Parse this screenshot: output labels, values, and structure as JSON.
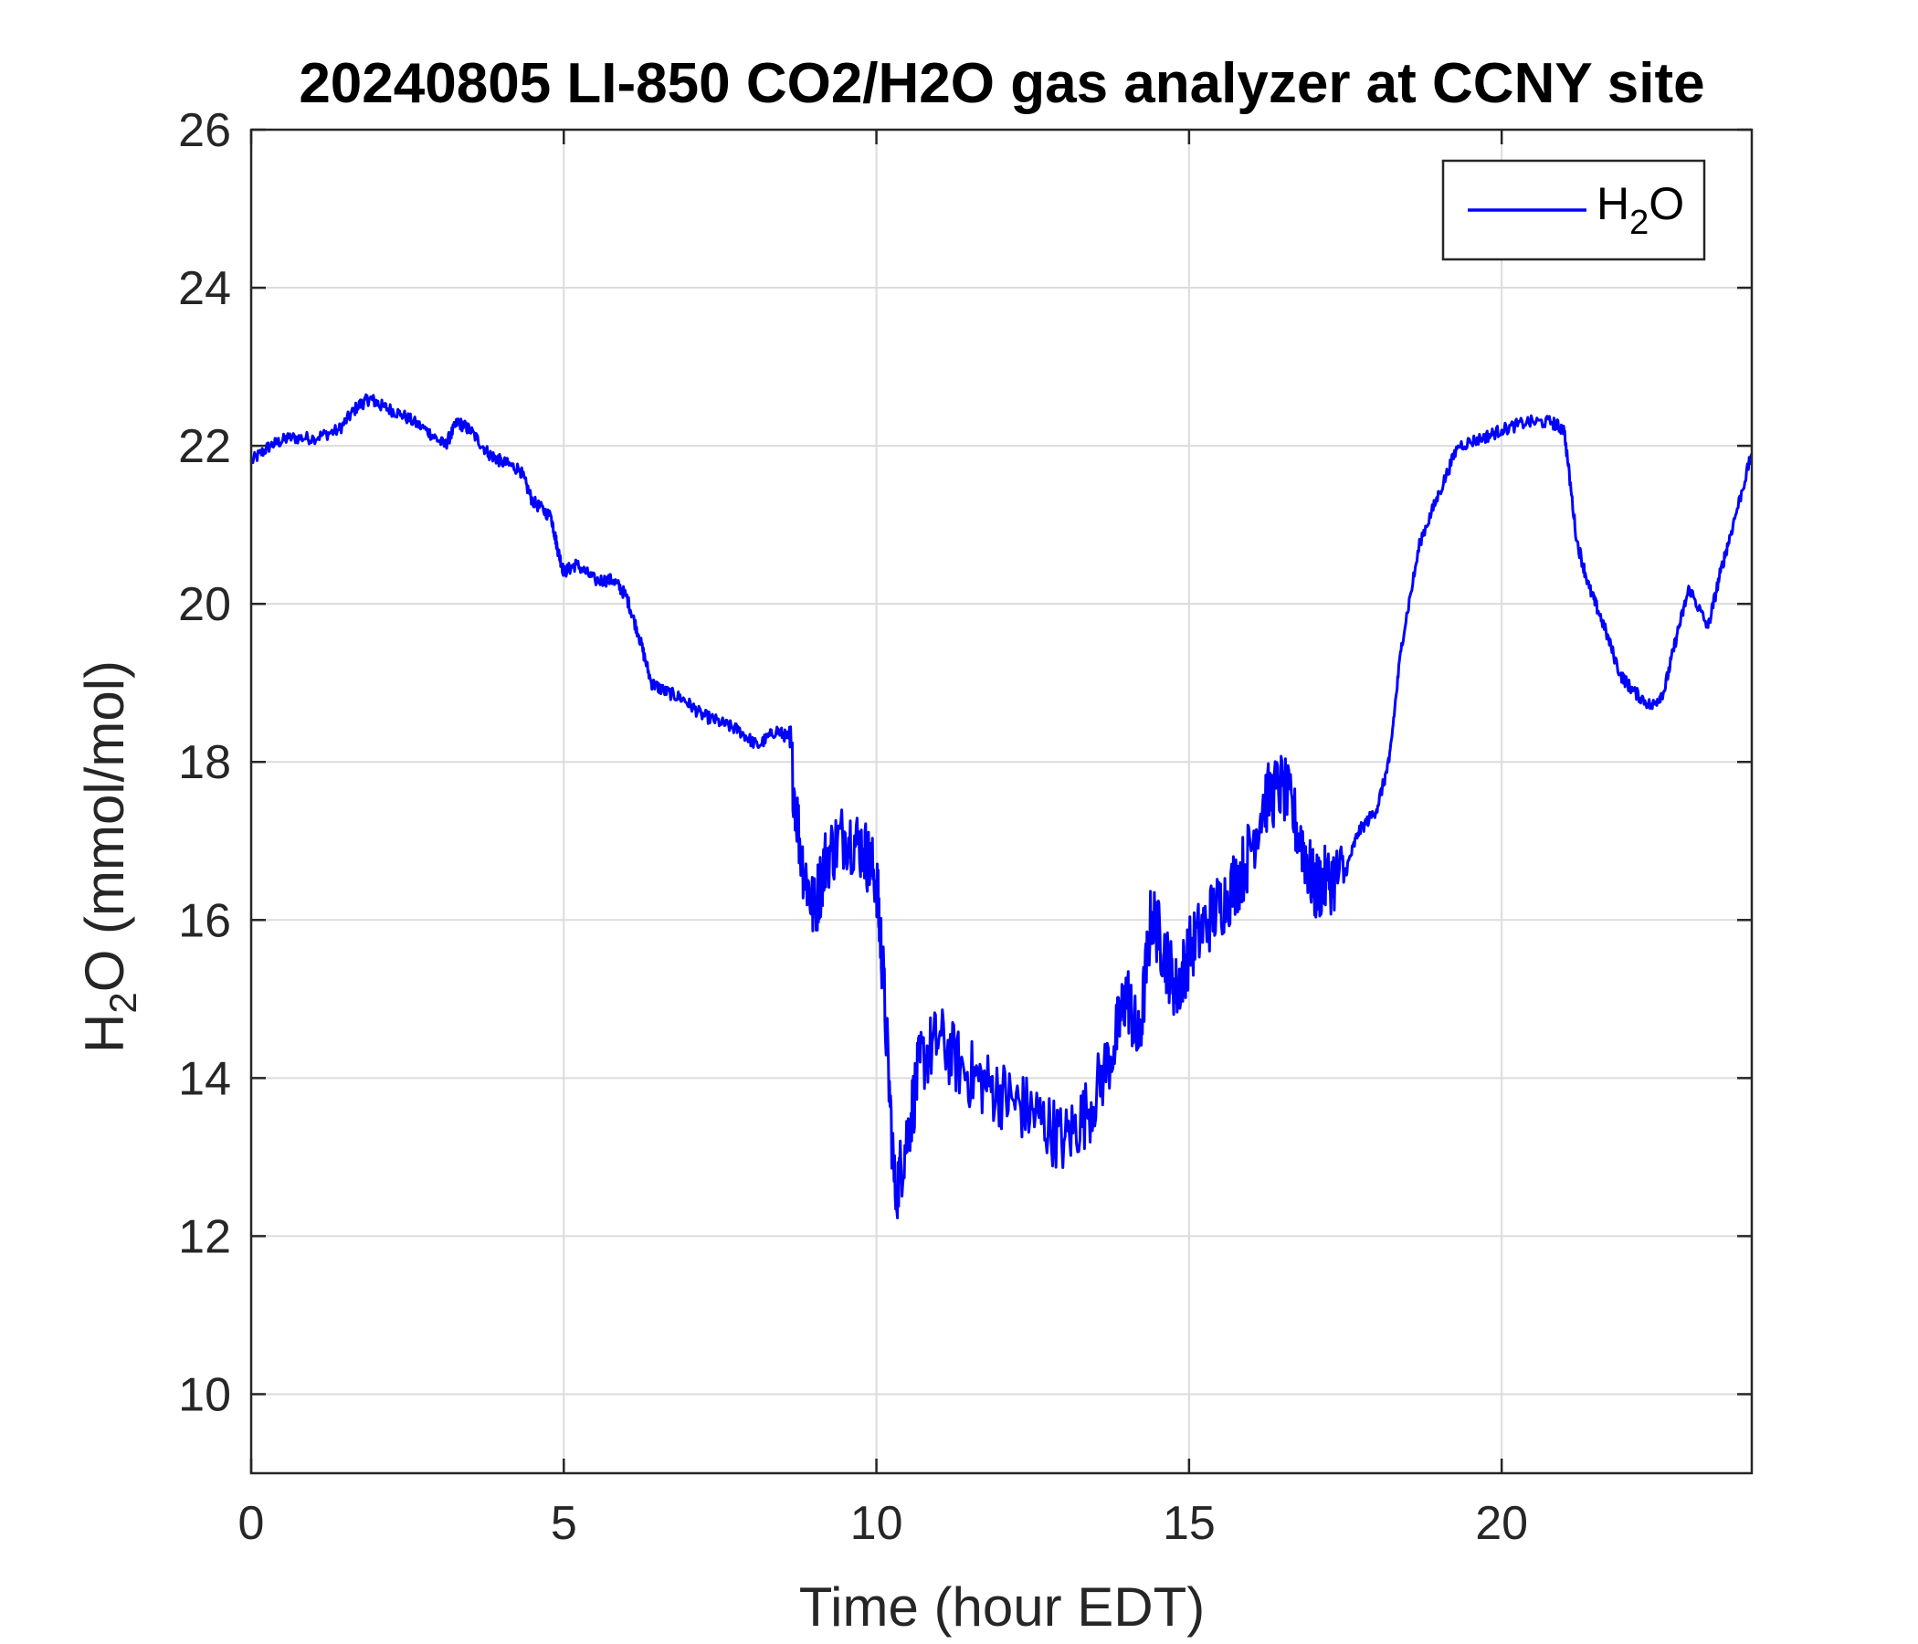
{
  "chart_data": {
    "type": "line",
    "title": "20240805 LI-850 CO2/H2O gas analyzer at CCNY site",
    "xlabel": "Time (hour EDT)",
    "ylabel": {
      "main": "H",
      "sub": "2",
      "rest": "O (mmol/mol)"
    },
    "xlim": [
      0,
      24
    ],
    "ylim": [
      9,
      26
    ],
    "xticks": [
      0,
      5,
      10,
      15,
      20
    ],
    "yticks": [
      10,
      12,
      14,
      16,
      18,
      20,
      22,
      24,
      26
    ],
    "grid": true,
    "legend_position": "top-right",
    "series": [
      {
        "name": {
          "main": "H",
          "sub": "2",
          "rest": "O"
        },
        "color": "#0000ff",
        "x": [
          0,
          0.3,
          0.6,
          1.0,
          1.4,
          1.7,
          1.9,
          2.1,
          2.4,
          2.8,
          3.1,
          3.3,
          3.5,
          3.8,
          4.0,
          4.3,
          4.5,
          4.8,
          4.9,
          5.0,
          5.2,
          5.5,
          5.8,
          6.0,
          6.2,
          6.4,
          6.6,
          6.9,
          7.2,
          7.5,
          7.8,
          8.1,
          8.4,
          8.6,
          8.8,
          9.0,
          9.2,
          9.5,
          9.8,
          10.0,
          10.1,
          10.3,
          10.5,
          10.7,
          11.0,
          11.4,
          11.8,
          12.2,
          12.6,
          13.0,
          13.4,
          13.8,
          14.0,
          14.2,
          14.4,
          14.6,
          14.8,
          15.0,
          15.3,
          15.6,
          15.9,
          16.2,
          16.5,
          16.8,
          17.0,
          17.2,
          17.5,
          17.7,
          18.0,
          18.2,
          18.4,
          18.7,
          19.0,
          19.3,
          19.7,
          20.0,
          20.4,
          20.8,
          21.0,
          21.2,
          21.4,
          21.6,
          21.9,
          22.1,
          22.4,
          22.6,
          22.8,
          23.0,
          23.3,
          23.5,
          23.7,
          24.0
        ],
        "y": [
          21.8,
          22.0,
          22.1,
          22.1,
          22.2,
          22.5,
          22.6,
          22.5,
          22.4,
          22.2,
          22.0,
          22.3,
          22.2,
          21.9,
          21.8,
          21.7,
          21.3,
          21.1,
          20.7,
          20.4,
          20.5,
          20.3,
          20.3,
          20.1,
          19.6,
          19.0,
          18.9,
          18.8,
          18.6,
          18.5,
          18.4,
          18.2,
          18.4,
          18.3,
          16.8,
          16.1,
          16.8,
          17.1,
          16.9,
          16.5,
          15.4,
          12.5,
          13.3,
          14.2,
          14.5,
          14.1,
          13.9,
          13.7,
          13.5,
          13.2,
          13.6,
          14.4,
          15.1,
          14.4,
          16.1,
          15.6,
          15.1,
          15.6,
          16.0,
          16.3,
          16.7,
          17.5,
          17.7,
          17.0,
          16.4,
          16.5,
          16.6,
          17.1,
          17.4,
          18.0,
          19.5,
          20.8,
          21.4,
          22.0,
          22.1,
          22.2,
          22.3,
          22.3,
          22.2,
          20.8,
          20.2,
          19.8,
          19.1,
          18.9,
          18.7,
          18.9,
          19.6,
          20.2,
          19.7,
          20.4,
          21.0,
          21.9
        ]
      }
    ]
  }
}
